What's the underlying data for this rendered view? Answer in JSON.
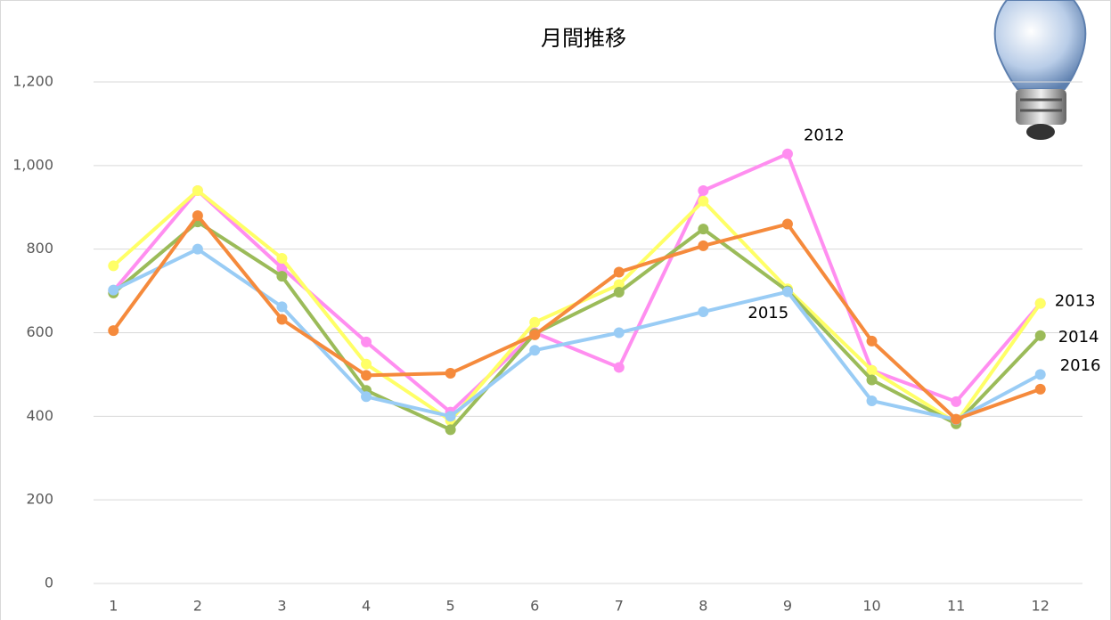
{
  "chart_data": {
    "type": "line",
    "title": "月間推移",
    "categories": [
      "1",
      "2",
      "3",
      "4",
      "5",
      "6",
      "7",
      "8",
      "9",
      "10",
      "11",
      "12"
    ],
    "series": [
      {
        "name": "2012",
        "color": "#ff8ef0",
        "values": [
          700,
          940,
          755,
          578,
          410,
          600,
          517,
          940,
          1028,
          510,
          435,
          670
        ]
      },
      {
        "name": "2013",
        "color": "#ffff66",
        "values": [
          760,
          940,
          778,
          525,
          390,
          625,
          715,
          915,
          705,
          510,
          385,
          670
        ]
      },
      {
        "name": "2014",
        "color": "#9bbb59",
        "values": [
          695,
          865,
          735,
          462,
          368,
          598,
          697,
          848,
          700,
          487,
          382,
          593
        ]
      },
      {
        "name": "2015",
        "color": "#99ccf5",
        "values": [
          702,
          800,
          662,
          447,
          400,
          558,
          600,
          650,
          698,
          437,
          392,
          500
        ]
      },
      {
        "name": "2016",
        "color": "#f58a3c",
        "values": [
          605,
          880,
          632,
          498,
          503,
          595,
          745,
          808,
          860,
          580,
          393,
          465
        ]
      }
    ],
    "ylim": [
      0,
      1200
    ],
    "yticks": [
      0,
      200,
      400,
      600,
      800,
      {
        "value": 1000,
        "label": "1,000"
      },
      {
        "value": 1200,
        "label": "1,200"
      }
    ],
    "grid": true
  }
}
